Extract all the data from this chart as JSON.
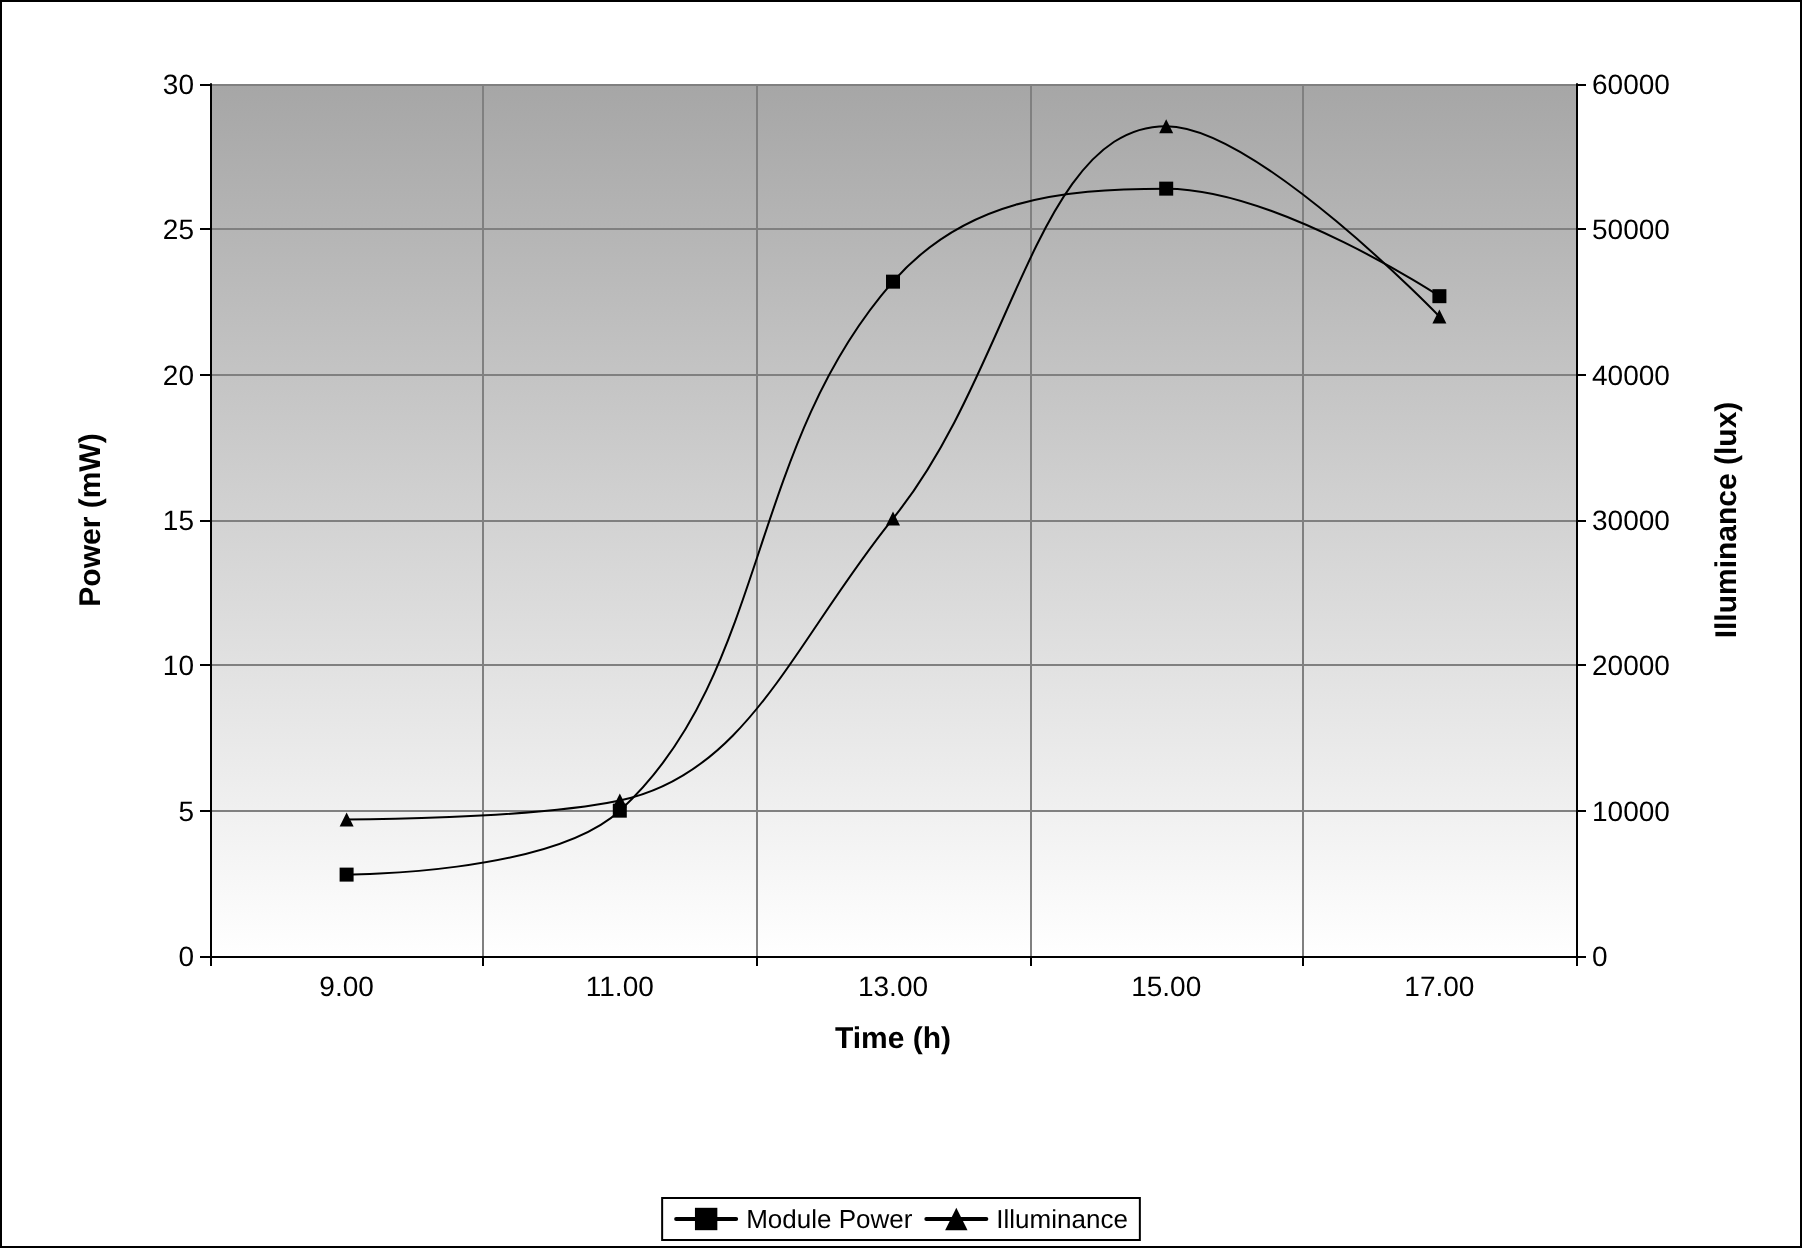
{
  "chart_data": {
    "type": "line",
    "xlabel": "Time (h)",
    "ylabel": "Power (mW)",
    "y2label": "Illuminance (lux)",
    "categories": [
      "9.00",
      "11.00",
      "13.00",
      "15.00",
      "17.00"
    ],
    "series": [
      {
        "name": "Module Power",
        "color": "#000000",
        "marker": "square",
        "values": [
          2.8,
          5.0,
          23.2,
          26.4,
          22.7
        ]
      },
      {
        "name": "Illuminance",
        "color": "#000000",
        "marker": "triangle",
        "axis": "y2",
        "values": [
          9400,
          10700,
          30100,
          57100,
          44000
        ]
      }
    ],
    "ylim": [
      0,
      30
    ],
    "yticks": [
      0,
      5,
      10,
      15,
      20,
      25,
      30
    ],
    "y2lim": [
      0,
      60000
    ],
    "y2ticks": [
      0,
      10000,
      20000,
      30000,
      40000,
      50000,
      60000
    ],
    "grid": true,
    "legend": "bottom",
    "line_style": "solid"
  }
}
